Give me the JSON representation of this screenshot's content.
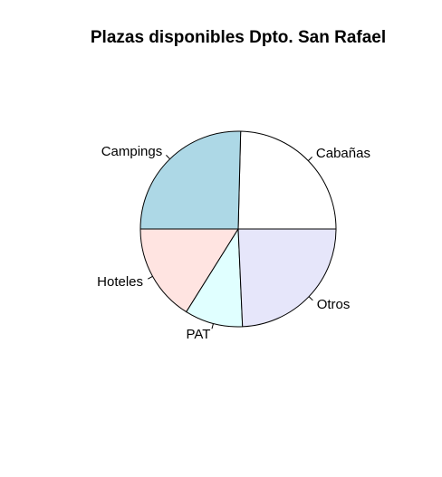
{
  "chart_data": {
    "type": "pie",
    "title": "Plazas disponibles Dpto. San Rafael",
    "start_angle_deg": 0,
    "direction": "counterclockwise",
    "slices": [
      {
        "label": "Cabañas",
        "value": 24.6,
        "color": "#ffffff"
      },
      {
        "label": "Campings",
        "value": 25.4,
        "color": "#add8e6"
      },
      {
        "label": "Hoteles",
        "value": 16.1,
        "color": "#ffe4e1"
      },
      {
        "label": "PAT",
        "value": 9.6,
        "color": "#e0ffff"
      },
      {
        "label": "Otros",
        "value": 24.3,
        "color": "#e6e6fa"
      }
    ]
  }
}
